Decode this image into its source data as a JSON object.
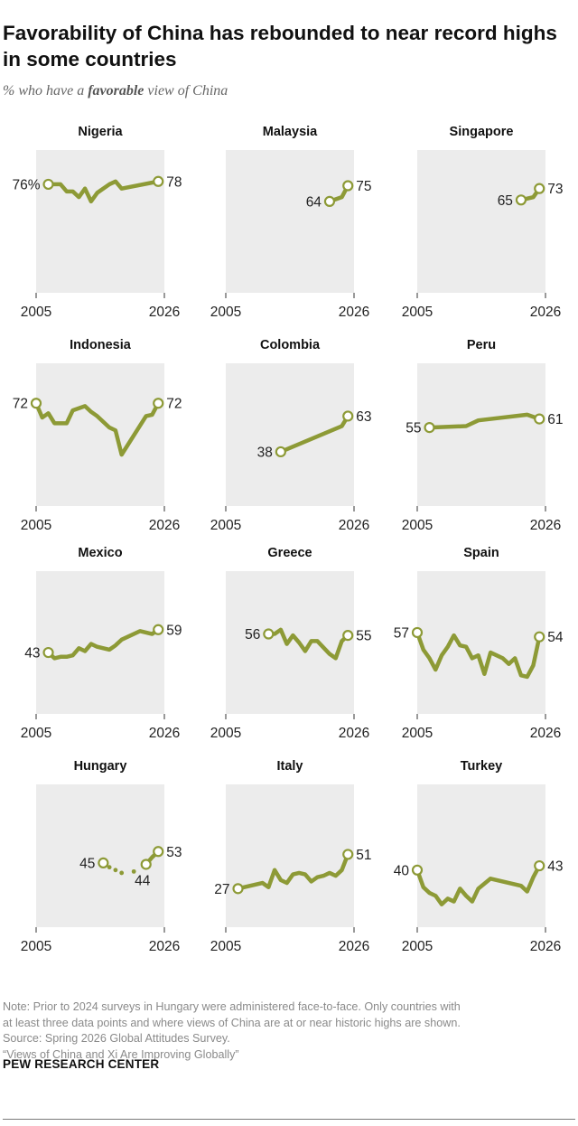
{
  "header": {
    "title": "Favorability of China has rebounded to near record highs in some countries",
    "subtitle_prefix": "% who have a ",
    "subtitle_emphasis": "favorable",
    "subtitle_suffix": " view of China"
  },
  "colors": {
    "line": "#8d9a36",
    "panel": "#ececec",
    "text": "#222222",
    "footnote": "#8a8a8a"
  },
  "chart_data": [
    {
      "type": "line",
      "title": "Nigeria",
      "xlim": [
        2005,
        2026
      ],
      "ylim": [
        0,
        100
      ],
      "xtick_labels": [
        "2005",
        "2026"
      ],
      "start_label": "76%",
      "end_label": "78",
      "x": [
        2007,
        2008,
        2009,
        2010,
        2011,
        2012,
        2013,
        2014,
        2015,
        2017,
        2018,
        2019,
        2025
      ],
      "y": [
        76,
        76,
        76,
        71,
        71,
        67,
        73,
        64,
        70,
        76,
        78,
        73,
        78
      ]
    },
    {
      "type": "line",
      "title": "Malaysia",
      "xlim": [
        2005,
        2026
      ],
      "ylim": [
        0,
        100
      ],
      "xtick_labels": [
        "2005",
        "2026"
      ],
      "start_label": "64",
      "end_label": "75",
      "x": [
        2022,
        2024,
        2025
      ],
      "y": [
        64,
        67,
        75
      ]
    },
    {
      "type": "line",
      "title": "Singapore",
      "xlim": [
        2005,
        2026
      ],
      "ylim": [
        0,
        100
      ],
      "xtick_labels": [
        "2005",
        "2026"
      ],
      "start_label": "65",
      "end_label": "73",
      "x": [
        2022,
        2024,
        2025
      ],
      "y": [
        65,
        67,
        73
      ]
    },
    {
      "type": "line",
      "title": "Indonesia",
      "xlim": [
        2005,
        2026
      ],
      "ylim": [
        0,
        100
      ],
      "xtick_labels": [
        "2005",
        "2026"
      ],
      "start_label": "72",
      "end_label": "72",
      "x": [
        2005,
        2006,
        2007,
        2008,
        2009,
        2010,
        2011,
        2013,
        2014,
        2015,
        2017,
        2018,
        2019,
        2023,
        2024,
        2025
      ],
      "y": [
        72,
        62,
        65,
        58,
        58,
        58,
        67,
        70,
        66,
        63,
        55,
        53,
        36,
        63,
        64,
        72
      ]
    },
    {
      "type": "line",
      "title": "Colombia",
      "xlim": [
        2005,
        2026
      ],
      "ylim": [
        0,
        100
      ],
      "xtick_labels": [
        "2005",
        "2026"
      ],
      "start_label": "38",
      "end_label": "63",
      "x": [
        2014,
        2024,
        2025
      ],
      "y": [
        38,
        56,
        63
      ]
    },
    {
      "type": "line",
      "title": "Peru",
      "xlim": [
        2005,
        2026
      ],
      "ylim": [
        0,
        100
      ],
      "xtick_labels": [
        "2005",
        "2026"
      ],
      "start_label": "55",
      "end_label": "61",
      "x": [
        2007,
        2013,
        2015,
        2023,
        2025
      ],
      "y": [
        55,
        56,
        60,
        64,
        61
      ]
    },
    {
      "type": "line",
      "title": "Mexico",
      "xlim": [
        2005,
        2026
      ],
      "ylim": [
        0,
        100
      ],
      "xtick_labels": [
        "2005",
        "2026"
      ],
      "start_label": "43",
      "end_label": "59",
      "x": [
        2007,
        2008,
        2009,
        2010,
        2011,
        2012,
        2013,
        2014,
        2015,
        2017,
        2018,
        2019,
        2022,
        2023,
        2024,
        2025
      ],
      "y": [
        43,
        39,
        40,
        40,
        41,
        46,
        44,
        49,
        47,
        45,
        48,
        52,
        58,
        57,
        56,
        59
      ]
    },
    {
      "type": "line",
      "title": "Greece",
      "xlim": [
        2005,
        2026
      ],
      "ylim": [
        0,
        100
      ],
      "xtick_labels": [
        "2005",
        "2026"
      ],
      "start_label": "56",
      "end_label": "55",
      "x": [
        2012,
        2013,
        2014,
        2015,
        2016,
        2017,
        2018,
        2019,
        2020,
        2022,
        2023,
        2024,
        2025
      ],
      "y": [
        56,
        56,
        59,
        49,
        55,
        50,
        44,
        51,
        51,
        42,
        39,
        51,
        55
      ]
    },
    {
      "type": "line",
      "title": "Spain",
      "xlim": [
        2005,
        2026
      ],
      "ylim": [
        0,
        100
      ],
      "xtick_labels": [
        "2005",
        "2026"
      ],
      "start_label": "57",
      "end_label": "54",
      "x": [
        2005,
        2006,
        2007,
        2008,
        2009,
        2010,
        2011,
        2012,
        2013,
        2014,
        2015,
        2016,
        2017,
        2018,
        2019,
        2020,
        2021,
        2022,
        2023,
        2024,
        2025
      ],
      "y": [
        57,
        45,
        39,
        31,
        41,
        47,
        55,
        48,
        47,
        39,
        41,
        28,
        43,
        41,
        39,
        35,
        39,
        27,
        26,
        34,
        54
      ]
    },
    {
      "type": "line",
      "title": "Hungary",
      "xlim": [
        2005,
        2026
      ],
      "ylim": [
        0,
        100
      ],
      "xtick_labels": [
        "2005",
        "2026"
      ],
      "start_label": "45",
      "end_label": "53",
      "marker_labels": [
        {
          "year": 2023,
          "value": "44"
        }
      ],
      "series": [
        {
          "name": "",
          "style": "dotted",
          "x": [
            2016,
            2017,
            2018,
            2019,
            2021,
            2023
          ],
          "y": [
            45,
            42,
            40,
            38,
            39,
            44
          ]
        },
        {
          "name": "",
          "style": "solid",
          "x": [
            2023,
            2024,
            2025
          ],
          "y": [
            44,
            49,
            53
          ]
        }
      ]
    },
    {
      "type": "line",
      "title": "Italy",
      "xlim": [
        2005,
        2026
      ],
      "ylim": [
        0,
        100
      ],
      "xtick_labels": [
        "2005",
        "2026"
      ],
      "start_label": "27",
      "end_label": "51",
      "x": [
        2007,
        2011,
        2012,
        2013,
        2014,
        2015,
        2016,
        2017,
        2018,
        2019,
        2020,
        2021,
        2022,
        2023,
        2024,
        2025
      ],
      "y": [
        27,
        31,
        28,
        40,
        33,
        31,
        37,
        38,
        37,
        32,
        35,
        36,
        38,
        36,
        40,
        51
      ]
    },
    {
      "type": "line",
      "title": "Turkey",
      "xlim": [
        2005,
        2026
      ],
      "ylim": [
        0,
        100
      ],
      "xtick_labels": [
        "2005",
        "2026"
      ],
      "start_label": "40",
      "end_label": "43",
      "x": [
        2005,
        2006,
        2007,
        2008,
        2009,
        2010,
        2011,
        2012,
        2013,
        2014,
        2015,
        2017,
        2022,
        2023,
        2024,
        2025
      ],
      "y": [
        40,
        28,
        24,
        22,
        16,
        20,
        18,
        27,
        22,
        18,
        27,
        34,
        29,
        25,
        35,
        43
      ]
    }
  ],
  "footer": {
    "note_lines": [
      "Note: Prior to 2024 surveys in Hungary were administered face-to-face. Only countries with",
      "at least three data points and where views of China are at or near historic highs are shown."
    ],
    "source": "Source: Spring 2026 Global Attitudes Survey.",
    "report": "“Views of China and Xi Are Improving Globally”",
    "brand": "PEW RESEARCH CENTER"
  }
}
